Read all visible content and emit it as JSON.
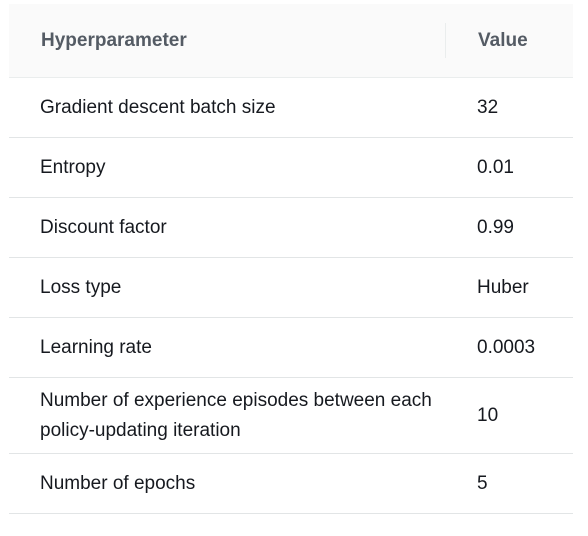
{
  "table": {
    "headers": {
      "param": "Hyperparameter",
      "value": "Value"
    },
    "rows": [
      {
        "param": "Gradient descent batch size",
        "value": "32"
      },
      {
        "param": "Entropy",
        "value": "0.01"
      },
      {
        "param": "Discount factor",
        "value": "0.99"
      },
      {
        "param": "Loss type",
        "value": "Huber"
      },
      {
        "param": "Learning rate",
        "value": "0.0003"
      },
      {
        "param": "Number of experience episodes between each policy-updating iteration",
        "value": "10"
      },
      {
        "param": "Number of epochs",
        "value": "5"
      }
    ]
  }
}
